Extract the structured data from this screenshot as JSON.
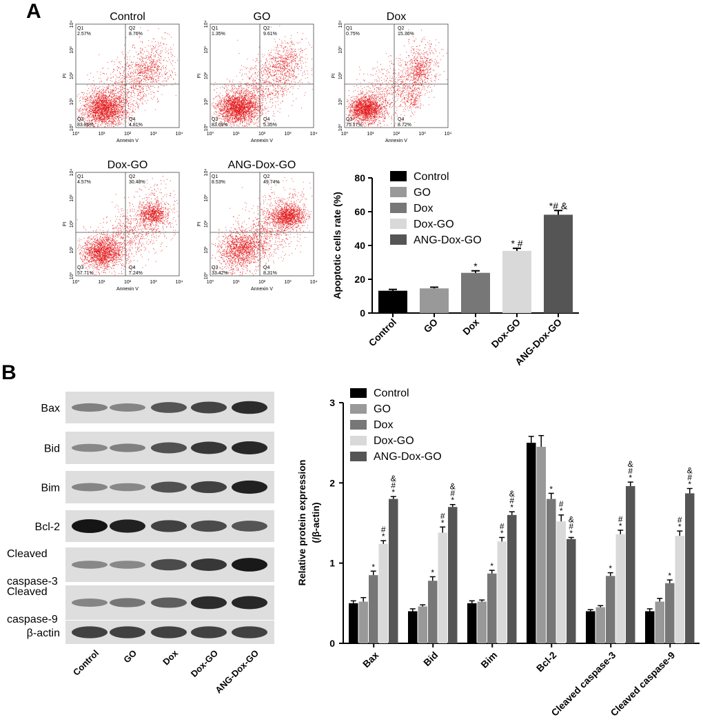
{
  "panel_labels": [
    "A",
    "B"
  ],
  "flow_plots": [
    {
      "title": "Control",
      "q1": "Q1",
      "q1_val": "2.57%",
      "q2": "Q2",
      "q2_val": "8.76%",
      "q3": "Q3",
      "q3_val": "83.86%",
      "q4": "Q4",
      "q4_val": "4.81%",
      "xlabel": "Annexin V",
      "ylabel": "PI",
      "profile": "control"
    },
    {
      "title": "GO",
      "q1": "Q1",
      "q1_val": "1.35%",
      "q2": "Q2",
      "q2_val": "9.61%",
      "q3": "Q3",
      "q3_val": "83.69%",
      "q4": "Q4",
      "q4_val": "5.35%",
      "xlabel": "Annexin V",
      "ylabel": "PI",
      "profile": "go"
    },
    {
      "title": "Dox",
      "q1": "Q1",
      "q1_val": "0.75%",
      "q2": "Q2",
      "q2_val": "15.36%",
      "q3": "Q3",
      "q3_val": "75.17%",
      "q4": "Q4",
      "q4_val": "8.72%",
      "xlabel": "Annexin V",
      "ylabel": "PI",
      "profile": "dox"
    },
    {
      "title": "Dox-GO",
      "q1": "Q1",
      "q1_val": "4.57%",
      "q2": "Q2",
      "q2_val": "30.48%",
      "q3": "Q3",
      "q3_val": "57.71%",
      "q4": "Q4",
      "q4_val": "7.24%",
      "xlabel": "Annexin V",
      "ylabel": "PI",
      "profile": "doxgo"
    },
    {
      "title": "ANG-Dox-GO",
      "q1": "Q1",
      "q1_val": "8.53%",
      "q2": "Q2",
      "q2_val": "49.74%",
      "q3": "Q3",
      "q3_val": "33.42%",
      "q4": "Q4",
      "q4_val": "8.31%",
      "xlabel": "Annexin V",
      "ylabel": "PI",
      "profile": "ang"
    }
  ],
  "flow_axis": {
    "x_ticks": [
      "10⁰",
      "10¹",
      "10²",
      "10³",
      "10⁴"
    ],
    "y_ticks": [
      "10⁰",
      "10¹",
      "10²",
      "10³",
      "10⁴"
    ]
  },
  "chart_data": [
    {
      "type": "bar",
      "categories": [
        "Control",
        "GO",
        "Dox",
        "Dox-GO",
        "ANG-Dox-GO"
      ],
      "values": [
        13.2,
        14.6,
        23.8,
        36.8,
        58.2
      ],
      "errors": [
        0.8,
        0.7,
        1.2,
        1.5,
        2.5
      ],
      "annotations": [
        "",
        "",
        "*",
        "* #",
        "*# &"
      ],
      "colors": [
        "#000000",
        "#999999",
        "#777777",
        "#d9d9d9",
        "#555555"
      ],
      "legend": [
        "Control",
        "GO",
        "Dox",
        "Dox-GO",
        "ANG-Dox-GO"
      ],
      "legend_position": "top-right",
      "ylabel": "Apoptotic cells rate (%)",
      "ylim": [
        0,
        80
      ],
      "yticks": [
        0,
        20,
        40,
        60,
        80
      ]
    },
    {
      "type": "bar",
      "categories": [
        "Bax",
        "Bid",
        "Bim",
        "Bcl-2",
        "Cleaved caspase-3",
        "Cleaved caspase-9"
      ],
      "series": [
        {
          "name": "Control",
          "values": [
            0.5,
            0.4,
            0.5,
            2.5,
            0.4,
            0.4
          ],
          "errors": [
            0.03,
            0.03,
            0.03,
            0.08,
            0.02,
            0.03
          ]
        },
        {
          "name": "GO",
          "values": [
            0.52,
            0.46,
            0.52,
            2.45,
            0.45,
            0.52
          ],
          "errors": [
            0.05,
            0.02,
            0.02,
            0.14,
            0.02,
            0.04
          ]
        },
        {
          "name": "Dox",
          "values": [
            0.85,
            0.78,
            0.87,
            1.8,
            0.84,
            0.75
          ],
          "errors": [
            0.05,
            0.05,
            0.04,
            0.07,
            0.04,
            0.04
          ]
        },
        {
          "name": "Dox-GO",
          "values": [
            1.24,
            1.38,
            1.27,
            1.52,
            1.36,
            1.34
          ],
          "errors": [
            0.04,
            0.07,
            0.05,
            0.08,
            0.05,
            0.06
          ]
        },
        {
          "name": "ANG-Dox-GO",
          "values": [
            1.8,
            1.7,
            1.6,
            1.3,
            1.96,
            1.87
          ],
          "errors": [
            0.03,
            0.03,
            0.04,
            0.02,
            0.05,
            0.06
          ]
        }
      ],
      "annotations": [
        [
          "",
          "",
          "*",
          "#|*",
          "&|#|*"
        ],
        [
          "",
          "",
          "*",
          "#|*",
          "&|#|*"
        ],
        [
          "",
          "",
          "*",
          "#|*",
          "&|#|*"
        ],
        [
          "",
          "",
          "*",
          "#|*",
          "&|#|*"
        ],
        [
          "",
          "",
          "*",
          "#|*",
          "&|#|*"
        ],
        [
          "",
          "",
          "*",
          "#|*",
          "&|#|*"
        ]
      ],
      "colors": [
        "#000000",
        "#999999",
        "#777777",
        "#d9d9d9",
        "#555555"
      ],
      "legend_position": "top-left",
      "ylabel": "Relative protein expression",
      "ylabel2": "(/β-actin)",
      "ylim": [
        0,
        3
      ],
      "yticks": [
        0,
        1,
        2,
        3
      ]
    }
  ],
  "western_blot": {
    "lanes": [
      "Control",
      "GO",
      "Dox",
      "Dox-GO",
      "ANG-Dox-GO"
    ],
    "rows": [
      {
        "label": "Bax",
        "label2": "",
        "intensity": [
          0.45,
          0.42,
          0.7,
          0.78,
          0.9
        ]
      },
      {
        "label": "Bid",
        "label2": "",
        "intensity": [
          0.4,
          0.45,
          0.72,
          0.85,
          0.92
        ]
      },
      {
        "label": "Bim",
        "label2": "",
        "intensity": [
          0.42,
          0.4,
          0.72,
          0.8,
          0.95
        ]
      },
      {
        "label": "Bcl-2",
        "label2": "",
        "intensity": [
          1.0,
          0.95,
          0.8,
          0.75,
          0.7
        ]
      },
      {
        "label": "Cleaved",
        "label2": "caspase-3",
        "intensity": [
          0.4,
          0.4,
          0.75,
          0.85,
          0.98
        ]
      },
      {
        "label": "Cleaved",
        "label2": "caspase-9",
        "intensity": [
          0.42,
          0.52,
          0.65,
          0.9,
          0.92
        ]
      },
      {
        "label": "β-actin",
        "label2": "",
        "intensity": [
          0.8,
          0.8,
          0.8,
          0.8,
          0.8
        ]
      }
    ]
  }
}
